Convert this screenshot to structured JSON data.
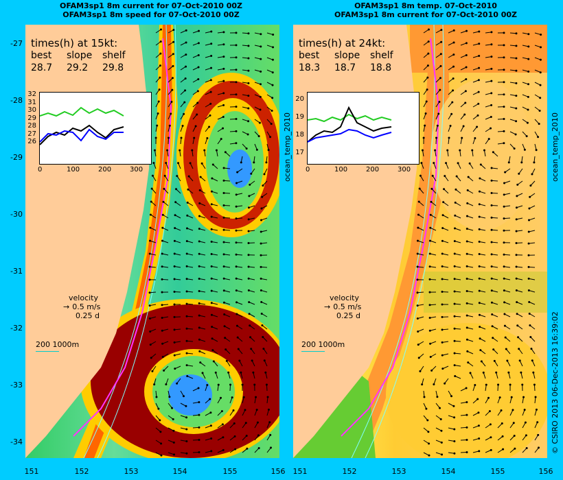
{
  "left": {
    "title1": "OFAM3sp1 8m current for 07-Oct-2010 00Z",
    "title2": "OFAM3sp1 8m speed for 07-Oct-2010 00Z",
    "times_header": "times(h) at 15kt:",
    "times_labels": [
      "best",
      "slope",
      "shelf"
    ],
    "times_values": [
      "28.7",
      "29.2",
      "29.8"
    ],
    "side_label": "ocean_temp_2010",
    "inset": {
      "yticks": [
        "32",
        "31",
        "30",
        "29",
        "28",
        "27",
        "26"
      ],
      "xticks": [
        "0",
        "100",
        "200",
        "300"
      ]
    }
  },
  "right": {
    "title1": "OFAM3sp1 8m temp. 07-Oct-2010",
    "title2": "OFAM3sp1 8m current for 07-Oct-2010 00Z",
    "times_header": "times(h) at 24kt:",
    "times_labels": [
      "best",
      "slope",
      "shelf"
    ],
    "times_values": [
      "18.3",
      "18.7",
      "18.8"
    ],
    "side_label": "ocean_temp_2010",
    "credit": "© CSIRO 2013   06-Dec-2013 16:39:02",
    "inset": {
      "yticks": [
        "20",
        "19",
        "18",
        "17"
      ],
      "xticks": [
        "0",
        "100",
        "200",
        "300"
      ]
    }
  },
  "velocity": {
    "label": "velocity",
    "speed": "0.5 m/s",
    "days": "0.25 d"
  },
  "scale_bar": {
    "label": "200  1000m"
  },
  "lat_ticks": [
    "-27",
    "-28",
    "-29",
    "-30",
    "-31",
    "-32",
    "-33",
    "-34"
  ],
  "lon_ticks": [
    "151",
    "152",
    "153",
    "154",
    "155",
    "156"
  ],
  "colors": {
    "frame_bg": "#00ccff",
    "land": "#ffcc99",
    "route": "#ff33ff"
  }
}
